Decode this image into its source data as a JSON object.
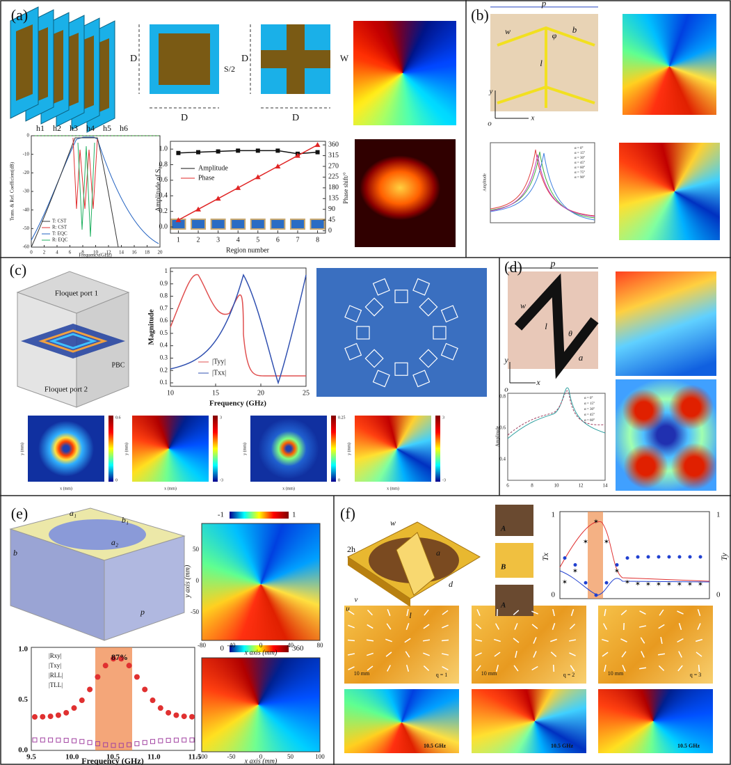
{
  "a": {
    "label": "(a)",
    "D": "D",
    "S": "S/2",
    "W": "W",
    "layers": [
      "h1",
      "h2",
      "h3",
      "h4",
      "h5",
      "h6"
    ],
    "spectrum": {
      "xlabel": "Frequency(GHz)",
      "ylabel": "Trans. & Ref. Coefficient(dB)",
      "xticks": [
        0,
        2,
        4,
        6,
        8,
        10,
        12,
        14,
        16,
        18,
        20
      ],
      "yticks": [
        0,
        -10,
        -20,
        -30,
        -40,
        -50,
        -60
      ],
      "legend": [
        "T: CST",
        "R: CST",
        "T: EQC",
        "R: EQC"
      ]
    },
    "region_chart": {
      "type": "line",
      "xlabel": "Region number",
      "ylabel": "Amplitude of S₂₁",
      "y2label": "Phase shift/°",
      "x": [
        1,
        2,
        3,
        4,
        5,
        6,
        7,
        8
      ],
      "xlim": [
        0.6,
        8.4
      ],
      "xticks": [
        1,
        2,
        3,
        4,
        5,
        6,
        7,
        8
      ],
      "ylim": [
        -0.08,
        1.1
      ],
      "yticks": [
        {
          "value": 0,
          "label": "0.0"
        },
        0.2,
        0.4,
        0.6,
        0.8,
        {
          "value": 1,
          "label": "1.0"
        }
      ],
      "y2lim": [
        -10,
        375
      ],
      "y2ticks": [
        0,
        45,
        90,
        135,
        180,
        225,
        270,
        315,
        360
      ],
      "series": [
        {
          "name": "Amplitude",
          "color": "#111111",
          "values": [
            0.95,
            0.96,
            0.97,
            0.98,
            0.98,
            0.98,
            0.94,
            0.96
          ]
        },
        {
          "name": "Phase",
          "color": "#e02424",
          "values": [
            45,
            90,
            135,
            180,
            225,
            270,
            315,
            360
          ],
          "axis": "y2"
        }
      ]
    }
  },
  "b": {
    "label": "(b)",
    "p": "p",
    "w": "w",
    "b": "b",
    "phi": "φ",
    "l": "l",
    "y": "y",
    "x": "x",
    "o": "o",
    "ylabel": "Amplitude",
    "legend": [
      "α = 0°",
      "α = 15°",
      "α = 30°",
      "α = 45°",
      "α = 60°",
      "α = 75°",
      "α = 90°"
    ]
  },
  "c": {
    "label": "(c)",
    "port1": "Floquet port 1",
    "port2": "Floquet port 2",
    "pbc": "PBC",
    "ylabel": "Magnitude",
    "xlabel": "Frequency (GHz)",
    "xticks": [
      10,
      15,
      20,
      25
    ],
    "yticks": [
      0.1,
      0.2,
      0.3,
      0.4,
      0.5,
      0.6,
      0.7,
      0.8,
      0.9,
      1
    ],
    "legend": [
      "|Tyy|",
      "|Txx|"
    ],
    "colorbars": [
      [
        0.6,
        0
      ],
      [
        3,
        -3
      ],
      [
        0.25,
        0
      ],
      [
        3,
        -3
      ]
    ],
    "map_xlabel": "x (mm)",
    "map_ylabel": "y (mm)"
  },
  "d": {
    "label": "(d)",
    "p": "p",
    "w": "w",
    "l": "l",
    "theta": "θ",
    "a": "a",
    "y": "y",
    "x": "x",
    "o": "o",
    "ylabel": "Amplitude",
    "xticks": [
      6,
      8,
      10,
      12,
      14
    ],
    "yticks": [
      0.4,
      0.6,
      0.8
    ],
    "legend": [
      "α = 0°",
      "α = 15°",
      "α = 30°",
      "α = 45°",
      "α = 60°"
    ]
  },
  "e": {
    "label": "(e)",
    "a1": "a₁",
    "b1": "b₁",
    "a2": "a₂",
    "b": "b",
    "p": "p",
    "xlabel": "Frequency (GHz)",
    "xticks": [
      9.5,
      {
        "value": 10,
        "label": "10.0"
      },
      10.5,
      {
        "value": 11,
        "label": "11.0"
      },
      11.5
    ],
    "yticks": [
      {
        "value": 0,
        "label": "0.0"
      },
      0.5,
      {
        "value": 1,
        "label": "1.0"
      }
    ],
    "legend": [
      "|Rxy|",
      "|Txy|",
      "|RLL|",
      "|TLL|"
    ],
    "annotation": "87%",
    "map1": {
      "cbar": [
        -1,
        1
      ],
      "xticks": [
        -80,
        -40,
        0,
        40,
        80
      ],
      "yticks": [
        50,
        0,
        -50
      ],
      "xlabel": "x axis (mm)",
      "ylabel": "y axis (mm)"
    },
    "map2": {
      "cbar": [
        0,
        360
      ],
      "xticks": [
        -100,
        -50,
        0,
        50,
        100
      ],
      "xlabel": "x axis (mm)"
    }
  },
  "f": {
    "label": "(f)",
    "w": "w",
    "h": "2h",
    "l": "l",
    "d": "d",
    "a": "a",
    "u": "u",
    "v": "v",
    "cells": [
      "A",
      "B",
      "A"
    ],
    "yl": "Tx",
    "yr": "Ty",
    "ticks": [
      1,
      0
    ],
    "scale": [
      "10 mm",
      "10 mm",
      "10 mm"
    ],
    "q": [
      "q = 1",
      "q = 2",
      "q = 3"
    ],
    "freq": [
      "10.5 GHz",
      "10.5 GHz",
      "10.5 GHz"
    ]
  }
}
